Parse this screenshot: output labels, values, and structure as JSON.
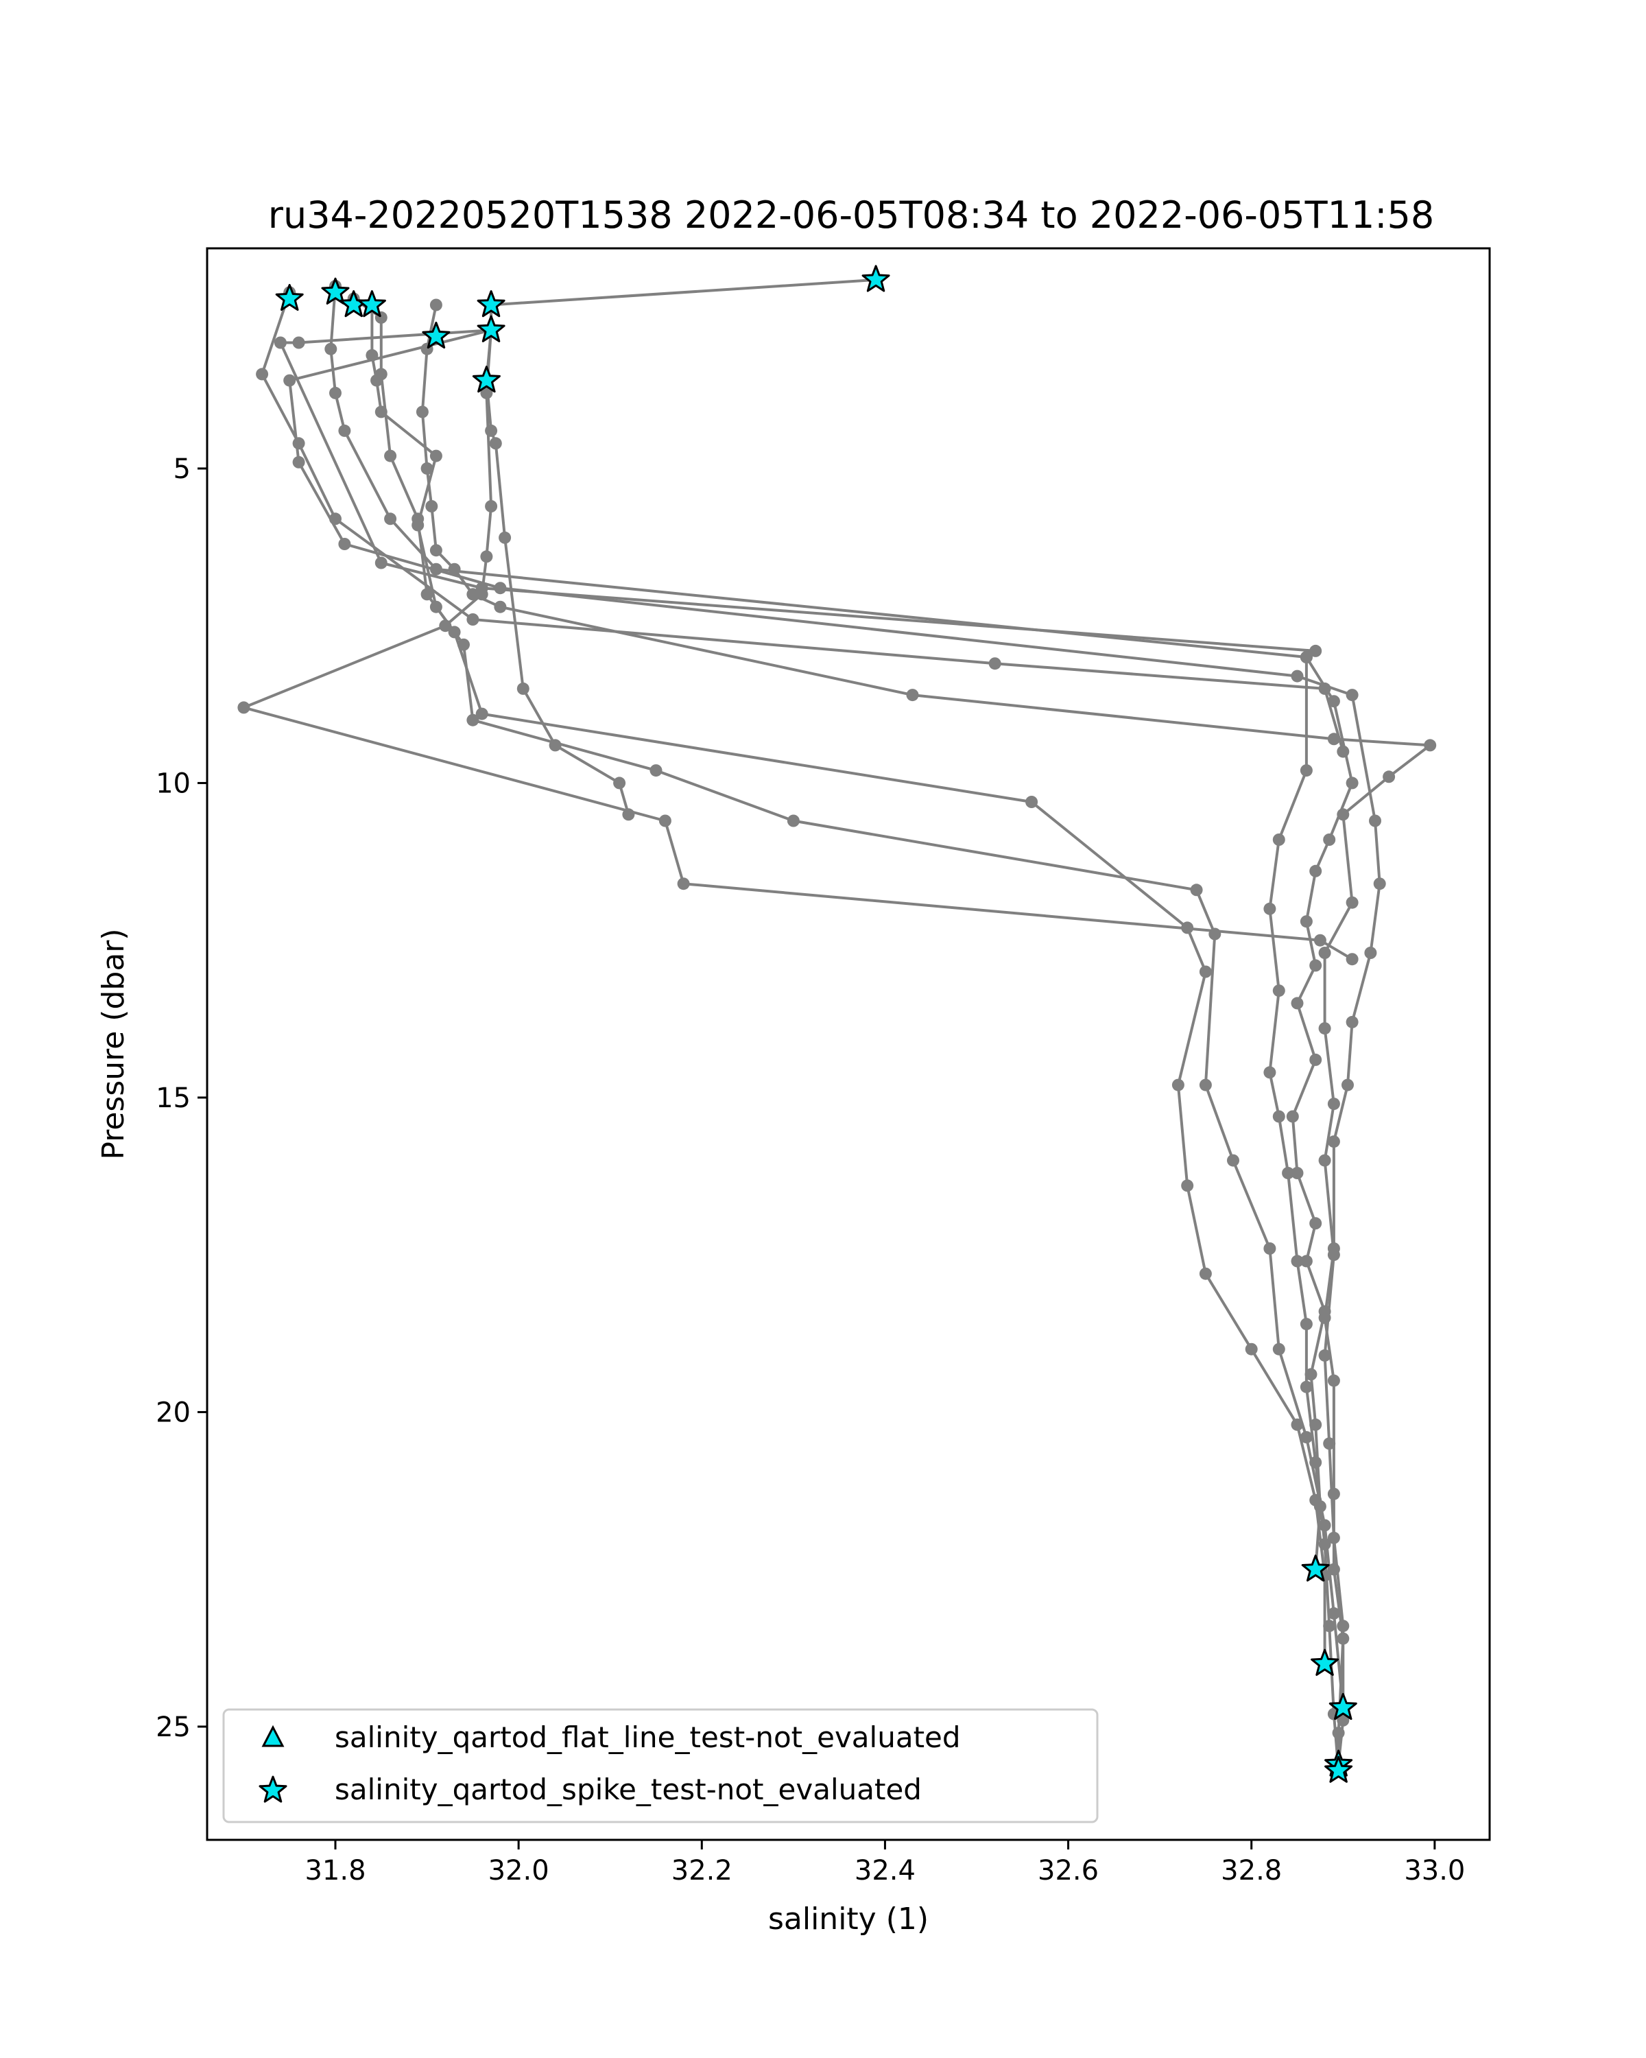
{
  "chart_data": {
    "type": "line",
    "title": "ru34-20220520T1538 2022-06-05T08:34 to 2022-06-05T11:58",
    "xlabel": "salinity (1)",
    "ylabel": "Pressure (dbar)",
    "xlim": [
      31.66,
      33.06
    ],
    "ylim": [
      26.8,
      1.5
    ],
    "y_inverted": true,
    "x_ticks": [
      31.8,
      32.0,
      32.2,
      32.4,
      32.6,
      32.8,
      33.0
    ],
    "x_tick_labels": [
      "31.8",
      "32.0",
      "32.2",
      "32.4",
      "32.6",
      "32.8",
      "33.0"
    ],
    "y_ticks": [
      5,
      10,
      15,
      20,
      25
    ],
    "y_tick_labels": [
      "5",
      "10",
      "15",
      "20",
      "25"
    ],
    "grid": false,
    "legend_position": "lower-left",
    "colors": {
      "line": "#808080",
      "marker": "#808080",
      "flag_fill": "#00e5ee",
      "flag_edge": "#000000"
    },
    "legend": [
      {
        "label": "salinity_qartod_flat_line_test-not_evaluated",
        "marker": "triangle"
      },
      {
        "label": "salinity_qartod_spike_test-not_evaluated",
        "marker": "star"
      }
    ],
    "series": [
      {
        "points": [
          [
            32.39,
            2.0
          ],
          [
            31.97,
            2.4
          ],
          [
            31.97,
            2.8
          ],
          [
            31.965,
            3.6
          ],
          [
            31.97,
            4.4
          ],
          [
            31.975,
            4.6
          ],
          [
            31.985,
            6.1
          ],
          [
            32.005,
            8.5
          ],
          [
            32.04,
            9.4
          ],
          [
            32.11,
            10.0
          ],
          [
            32.12,
            10.5
          ]
        ]
      },
      {
        "points": [
          [
            31.97,
            2.8
          ],
          [
            31.965,
            3.8
          ],
          [
            31.97,
            5.6
          ],
          [
            31.965,
            6.4
          ],
          [
            31.96,
            7.0
          ],
          [
            31.92,
            7.5
          ],
          [
            31.7,
            8.8
          ],
          [
            32.16,
            10.6
          ],
          [
            32.18,
            11.6
          ],
          [
            32.875,
            12.5
          ],
          [
            32.91,
            12.8
          ]
        ]
      },
      {
        "points": [
          [
            31.75,
            2.2
          ],
          [
            31.72,
            3.5
          ],
          [
            31.76,
            4.6
          ],
          [
            31.8,
            5.8
          ],
          [
            31.95,
            7.4
          ],
          [
            32.52,
            8.1
          ],
          [
            32.88,
            8.5
          ],
          [
            32.9,
            9.5
          ]
        ]
      },
      {
        "points": [
          [
            31.8,
            2.1
          ],
          [
            31.795,
            3.1
          ],
          [
            31.8,
            3.8
          ],
          [
            31.81,
            4.4
          ],
          [
            31.86,
            5.8
          ],
          [
            31.91,
            6.6
          ],
          [
            32.86,
            8.0
          ],
          [
            32.89,
            8.7
          ],
          [
            32.91,
            10.0
          ],
          [
            32.885,
            10.9
          ],
          [
            32.87,
            11.4
          ],
          [
            32.86,
            12.2
          ],
          [
            32.87,
            12.9
          ],
          [
            32.85,
            13.5
          ],
          [
            32.87,
            14.4
          ],
          [
            32.845,
            15.3
          ],
          [
            32.85,
            16.2
          ],
          [
            32.87,
            17.0
          ],
          [
            32.86,
            17.6
          ],
          [
            32.88,
            18.4
          ],
          [
            32.865,
            19.4
          ],
          [
            32.87,
            20.2
          ],
          [
            32.875,
            21.5
          ],
          [
            32.87,
            22.5
          ]
        ]
      },
      {
        "points": [
          [
            31.82,
            2.3
          ],
          [
            31.85,
            2.6
          ],
          [
            31.85,
            3.5
          ],
          [
            31.86,
            4.8
          ],
          [
            31.89,
            5.8
          ],
          [
            31.9,
            7.0
          ],
          [
            31.93,
            7.6
          ],
          [
            31.96,
            8.9
          ],
          [
            32.56,
            10.3
          ],
          [
            32.73,
            12.3
          ],
          [
            32.75,
            13.0
          ],
          [
            32.72,
            14.8
          ],
          [
            32.73,
            16.4
          ],
          [
            32.75,
            17.8
          ],
          [
            32.8,
            19.0
          ],
          [
            32.85,
            20.2
          ],
          [
            32.87,
            21.4
          ],
          [
            32.88,
            22.6
          ],
          [
            32.88,
            24.0
          ]
        ]
      },
      {
        "points": [
          [
            31.84,
            2.4
          ],
          [
            31.84,
            3.2
          ],
          [
            31.845,
            3.6
          ],
          [
            31.85,
            4.1
          ],
          [
            31.91,
            4.8
          ],
          [
            31.89,
            5.9
          ],
          [
            31.91,
            7.2
          ],
          [
            31.94,
            7.8
          ],
          [
            31.95,
            9.0
          ],
          [
            32.15,
            9.8
          ],
          [
            32.3,
            10.6
          ],
          [
            32.74,
            11.7
          ],
          [
            32.76,
            12.4
          ],
          [
            32.75,
            14.8
          ],
          [
            32.78,
            16.0
          ],
          [
            32.82,
            17.4
          ],
          [
            32.83,
            19.0
          ],
          [
            32.86,
            20.4
          ],
          [
            32.88,
            21.8
          ],
          [
            32.89,
            23.2
          ],
          [
            32.9,
            24.7
          ]
        ]
      },
      {
        "points": [
          [
            31.91,
            2.4
          ],
          [
            31.9,
            3.1
          ],
          [
            31.895,
            4.1
          ],
          [
            31.9,
            5.0
          ],
          [
            31.905,
            5.6
          ],
          [
            31.91,
            6.3
          ],
          [
            31.93,
            6.6
          ],
          [
            31.95,
            7.0
          ],
          [
            31.98,
            7.2
          ],
          [
            32.43,
            8.6
          ],
          [
            32.89,
            9.3
          ],
          [
            32.995,
            9.4
          ],
          [
            32.95,
            9.9
          ],
          [
            32.9,
            10.5
          ],
          [
            32.91,
            11.9
          ],
          [
            32.88,
            12.7
          ],
          [
            32.88,
            13.9
          ],
          [
            32.89,
            15.1
          ],
          [
            32.88,
            16.0
          ],
          [
            32.89,
            17.5
          ],
          [
            32.88,
            19.1
          ],
          [
            32.885,
            20.5
          ],
          [
            32.89,
            22.0
          ],
          [
            32.9,
            23.4
          ],
          [
            32.9,
            24.9
          ],
          [
            32.895,
            25.6
          ]
        ]
      },
      {
        "points": [
          [
            31.97,
            2.8
          ],
          [
            31.75,
            3.6
          ],
          [
            31.76,
            4.9
          ],
          [
            31.81,
            6.2
          ],
          [
            31.98,
            6.9
          ],
          [
            32.85,
            8.3
          ],
          [
            32.91,
            8.6
          ],
          [
            32.935,
            10.6
          ],
          [
            32.94,
            11.6
          ],
          [
            32.93,
            12.7
          ],
          [
            32.91,
            13.8
          ],
          [
            32.905,
            14.8
          ],
          [
            32.89,
            15.7
          ],
          [
            32.89,
            17.4
          ],
          [
            32.88,
            18.5
          ],
          [
            32.89,
            19.5
          ],
          [
            32.89,
            21.3
          ],
          [
            32.89,
            22.5
          ],
          [
            32.9,
            23.6
          ],
          [
            32.895,
            25.1
          ],
          [
            32.895,
            25.7
          ]
        ]
      },
      {
        "points": [
          [
            31.97,
            2.8
          ],
          [
            31.76,
            3.0
          ],
          [
            31.74,
            3.0
          ],
          [
            31.85,
            6.5
          ],
          [
            31.96,
            6.9
          ],
          [
            32.87,
            7.9
          ],
          [
            32.86,
            8.0
          ],
          [
            32.86,
            9.8
          ],
          [
            32.83,
            10.9
          ],
          [
            32.82,
            12.0
          ],
          [
            32.83,
            13.3
          ],
          [
            32.82,
            14.6
          ],
          [
            32.83,
            15.3
          ],
          [
            32.84,
            16.2
          ],
          [
            32.85,
            17.6
          ],
          [
            32.86,
            18.6
          ],
          [
            32.86,
            19.6
          ],
          [
            32.87,
            20.8
          ],
          [
            32.88,
            22.1
          ],
          [
            32.885,
            23.4
          ],
          [
            32.89,
            24.8
          ],
          [
            32.895,
            25.7
          ]
        ]
      }
    ],
    "spike_flags": [
      [
        32.39,
        2.0
      ],
      [
        31.75,
        2.3
      ],
      [
        31.8,
        2.2
      ],
      [
        31.82,
        2.4
      ],
      [
        31.84,
        2.4
      ],
      [
        31.97,
        2.4
      ],
      [
        31.91,
        2.9
      ],
      [
        31.97,
        2.8
      ],
      [
        31.965,
        3.6
      ],
      [
        32.87,
        22.5
      ],
      [
        32.88,
        24.0
      ],
      [
        32.9,
        24.7
      ],
      [
        32.895,
        25.6
      ],
      [
        32.895,
        25.7
      ]
    ]
  }
}
